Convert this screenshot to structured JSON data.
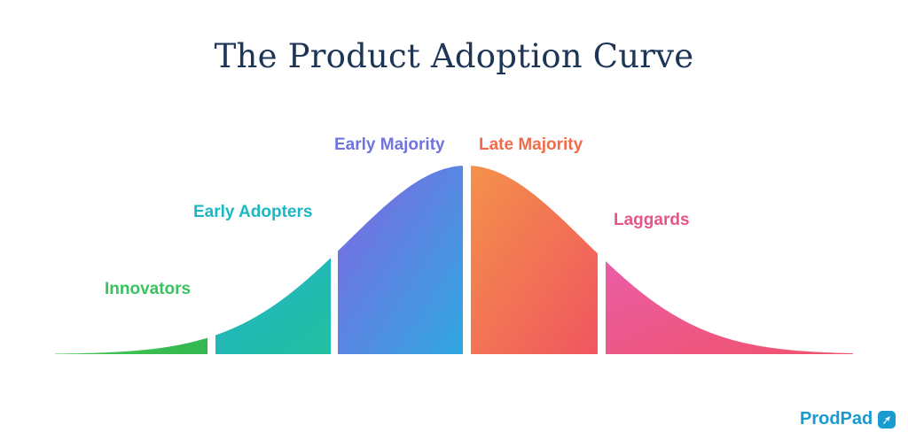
{
  "title": "The Product Adoption Curve",
  "segments": [
    {
      "label": "Innovators",
      "colors": [
        "#45c657",
        "#33b84f"
      ],
      "label_color": "#39c25f"
    },
    {
      "label": "Early Adopters",
      "colors": [
        "#22b3c8",
        "#22c0a0"
      ],
      "label_color": "#1ab8c4"
    },
    {
      "label": "Early Majority",
      "colors": [
        "#8265e3",
        "#2fa8e0"
      ],
      "label_color": "#6f74e0"
    },
    {
      "label": "Late Majority",
      "colors": [
        "#f4914a",
        "#f05660"
      ],
      "label_color": "#f06b4a"
    },
    {
      "label": "Laggards",
      "colors": [
        "#ea5ea6",
        "#f0526a"
      ],
      "label_color": "#e8548a"
    }
  ],
  "logo": {
    "text": "ProdPad",
    "color": "#1a9bd0"
  }
}
